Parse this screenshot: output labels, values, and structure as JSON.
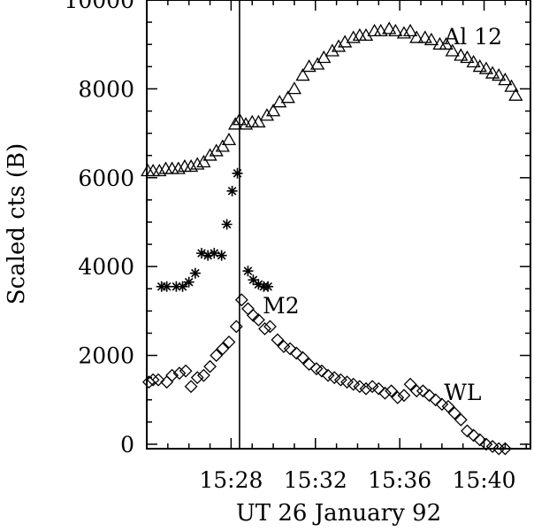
{
  "chart_data": {
    "type": "scatter",
    "title": "",
    "xlabel": "UT 26 January 92",
    "ylabel": "Scaled cts (B)",
    "x_unit": "minutes after 15:00 UT",
    "xlim": [
      24.0,
      42.2
    ],
    "ylim": [
      -100,
      10000
    ],
    "grid": false,
    "x_ticks": [
      {
        "value": 28,
        "label": "15:28"
      },
      {
        "value": 32,
        "label": "15:32"
      },
      {
        "value": 36,
        "label": "15:36"
      },
      {
        "value": 40,
        "label": "15:40"
      }
    ],
    "y_ticks": [
      {
        "value": 0,
        "label": "0"
      },
      {
        "value": 2000,
        "label": "2000"
      },
      {
        "value": 4000,
        "label": "4000"
      },
      {
        "value": 6000,
        "label": "6000"
      },
      {
        "value": 8000,
        "label": "8000"
      },
      {
        "value": 10000,
        "label": "10000"
      }
    ],
    "vertical_line_x": 28.4,
    "series": [
      {
        "name": "Al 12",
        "marker": "triangle",
        "x": [
          24.05,
          24.3,
          24.6,
          24.9,
          25.2,
          25.5,
          25.8,
          26.1,
          26.4,
          26.7,
          27.0,
          27.3,
          27.6,
          27.9,
          28.2,
          28.4,
          28.7,
          29.0,
          29.3,
          29.7,
          30.0,
          30.3,
          30.7,
          31.0,
          31.4,
          31.7,
          32.1,
          32.4,
          32.8,
          33.1,
          33.4,
          33.8,
          34.1,
          34.4,
          34.8,
          35.1,
          35.5,
          35.8,
          36.2,
          36.5,
          36.8,
          37.2,
          37.5,
          37.9,
          38.2,
          38.5,
          38.9,
          39.2,
          39.5,
          39.8,
          40.1,
          40.4,
          40.7,
          41.0,
          41.3,
          41.5
        ],
        "y": [
          6150,
          6150,
          6150,
          6200,
          6200,
          6200,
          6250,
          6250,
          6300,
          6350,
          6500,
          6600,
          6700,
          6850,
          7200,
          7300,
          7200,
          7250,
          7250,
          7400,
          7500,
          7700,
          7800,
          8000,
          8300,
          8500,
          8550,
          8700,
          8850,
          8950,
          9050,
          9150,
          9200,
          9200,
          9300,
          9300,
          9350,
          9300,
          9250,
          9300,
          9150,
          9150,
          9100,
          9000,
          9000,
          8850,
          8750,
          8700,
          8600,
          8500,
          8450,
          8350,
          8300,
          8200,
          8050,
          7850
        ]
      },
      {
        "name": "M2",
        "marker": "asterisk",
        "x": [
          24.7,
          24.95,
          25.4,
          25.7,
          26.0,
          26.3,
          26.6,
          26.9,
          27.2,
          27.55,
          27.8,
          28.05,
          28.3,
          28.8,
          29.05,
          29.3,
          29.55,
          29.75
        ],
        "y": [
          3550,
          3550,
          3550,
          3550,
          3650,
          3850,
          4300,
          4250,
          4300,
          4250,
          4950,
          5700,
          6100,
          3900,
          3700,
          3600,
          3550,
          3550
        ]
      },
      {
        "name": "WL",
        "marker": "diamond",
        "x": [
          24.1,
          24.3,
          24.55,
          24.95,
          25.2,
          25.55,
          25.85,
          26.1,
          26.4,
          26.7,
          27.0,
          27.3,
          27.6,
          27.9,
          28.25,
          28.5,
          28.8,
          29.05,
          29.3,
          29.6,
          29.85,
          30.2,
          30.5,
          30.8,
          31.1,
          31.4,
          31.7,
          32.05,
          32.3,
          32.6,
          32.9,
          33.2,
          33.5,
          33.8,
          34.1,
          34.4,
          34.7,
          35.0,
          35.3,
          35.6,
          35.9,
          36.2,
          36.5,
          36.8,
          37.1,
          37.4,
          37.7,
          38.0,
          38.3,
          38.6,
          38.9,
          39.2,
          39.5,
          39.8,
          40.1,
          40.4,
          40.7,
          41.0
        ],
        "y": [
          1400,
          1450,
          1450,
          1400,
          1550,
          1600,
          1650,
          1300,
          1500,
          1550,
          1750,
          2000,
          2150,
          2300,
          2650,
          3250,
          3050,
          2900,
          2800,
          2600,
          2650,
          2350,
          2200,
          2150,
          2050,
          1950,
          1800,
          1700,
          1650,
          1550,
          1500,
          1450,
          1400,
          1350,
          1300,
          1250,
          1300,
          1250,
          1150,
          1200,
          1050,
          1100,
          1350,
          1200,
          1200,
          1100,
          1000,
          900,
          850,
          700,
          550,
          300,
          200,
          100,
          0,
          -50,
          -100,
          -100
        ]
      }
    ],
    "series_labels": [
      {
        "text": "Al 12",
        "x": 38.1,
        "y": 9000
      },
      {
        "text": "M2",
        "x": 29.5,
        "y": 2950
      },
      {
        "text": "WL",
        "x": 38.1,
        "y": 1000
      }
    ]
  }
}
